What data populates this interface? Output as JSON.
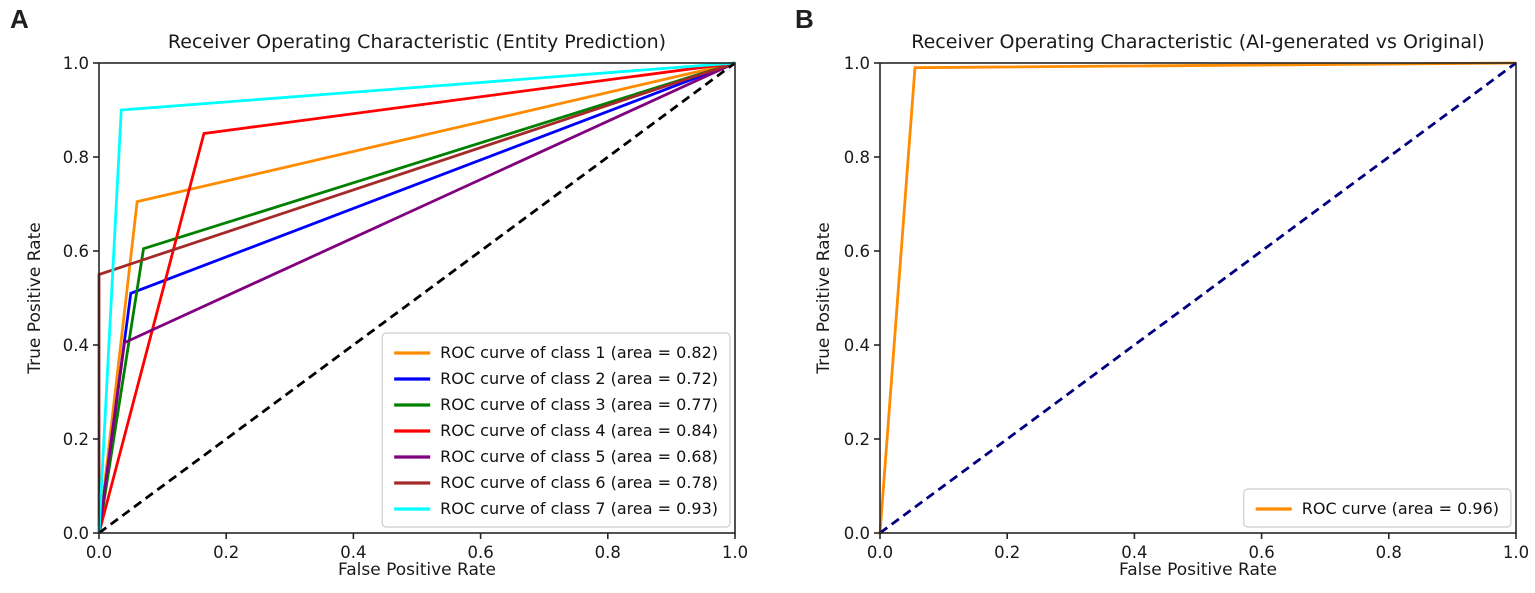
{
  "figure": {
    "background": "#ffffff",
    "text_color": "#1a1a1a",
    "frame_color": "#262626"
  },
  "chart_data": [
    {
      "panel_label": "A",
      "type": "line",
      "title": "Receiver Operating Characteristic (Entity Prediction)",
      "xlabel": "False Positive Rate",
      "ylabel": "True Positive Rate",
      "xlim": [
        0.0,
        1.0
      ],
      "ylim": [
        0.0,
        1.0
      ],
      "xticks": [
        "0.0",
        "0.2",
        "0.4",
        "0.6",
        "0.8",
        "1.0"
      ],
      "yticks": [
        "0.0",
        "0.2",
        "0.4",
        "0.6",
        "0.8",
        "1.0"
      ],
      "grid": false,
      "legend_position": "lower right",
      "series": [
        {
          "name": "ROC curve of class 1 (area = 0.82)",
          "auc": 0.82,
          "color": "#FF8C00",
          "dash": false,
          "points": [
            [
              0.0,
              0.0
            ],
            [
              0.06,
              0.705
            ],
            [
              1.0,
              1.0
            ]
          ]
        },
        {
          "name": "ROC curve of class 2 (area = 0.72)",
          "auc": 0.72,
          "color": "#0000FF",
          "dash": false,
          "points": [
            [
              0.0,
              0.0
            ],
            [
              0.05,
              0.51
            ],
            [
              1.0,
              1.0
            ]
          ]
        },
        {
          "name": "ROC curve of class 3 (area = 0.77)",
          "auc": 0.77,
          "color": "#008000",
          "dash": false,
          "points": [
            [
              0.0,
              0.0
            ],
            [
              0.07,
              0.605
            ],
            [
              1.0,
              1.0
            ]
          ]
        },
        {
          "name": "ROC curve of class 4 (area = 0.84)",
          "auc": 0.84,
          "color": "#FF0000",
          "dash": false,
          "points": [
            [
              0.0,
              0.0
            ],
            [
              0.165,
              0.85
            ],
            [
              1.0,
              1.0
            ]
          ]
        },
        {
          "name": "ROC curve of class 5 (area = 0.68)",
          "auc": 0.68,
          "color": "#800080",
          "dash": false,
          "points": [
            [
              0.0,
              0.0
            ],
            [
              0.04,
              0.405
            ],
            [
              1.0,
              1.0
            ]
          ]
        },
        {
          "name": "ROC curve of class 6 (area = 0.78)",
          "auc": 0.78,
          "color": "#A52A2A",
          "dash": false,
          "points": [
            [
              0.0,
              0.0
            ],
            [
              0.0,
              0.55
            ],
            [
              1.0,
              1.0
            ]
          ]
        },
        {
          "name": "ROC curve of class 7 (area = 0.93)",
          "auc": 0.93,
          "color": "#00FFFF",
          "dash": false,
          "points": [
            [
              0.0,
              0.0
            ],
            [
              0.035,
              0.9
            ],
            [
              1.0,
              1.0
            ]
          ]
        }
      ],
      "reference_line": {
        "name": "chance diagonal",
        "color": "#000000",
        "dash": true,
        "points": [
          [
            0.0,
            0.0
          ],
          [
            1.0,
            1.0
          ]
        ]
      }
    },
    {
      "panel_label": "B",
      "type": "line",
      "title": "Receiver Operating Characteristic (AI-generated vs Original)",
      "xlabel": "False Positive Rate",
      "ylabel": "True Positive Rate",
      "xlim": [
        0.0,
        1.0
      ],
      "ylim": [
        0.0,
        1.0
      ],
      "xticks": [
        "0.0",
        "0.2",
        "0.4",
        "0.6",
        "0.8",
        "1.0"
      ],
      "yticks": [
        "0.0",
        "0.2",
        "0.4",
        "0.6",
        "0.8",
        "1.0"
      ],
      "grid": false,
      "legend_position": "lower right",
      "series": [
        {
          "name": "ROC curve (area = 0.96)",
          "auc": 0.96,
          "color": "#FF8C00",
          "dash": false,
          "points": [
            [
              0.0,
              0.0
            ],
            [
              0.055,
              0.99
            ],
            [
              1.0,
              1.0
            ]
          ]
        }
      ],
      "reference_line": {
        "name": "chance diagonal",
        "color": "#000080",
        "dash": true,
        "points": [
          [
            0.0,
            0.0
          ],
          [
            1.0,
            1.0
          ]
        ]
      }
    }
  ]
}
